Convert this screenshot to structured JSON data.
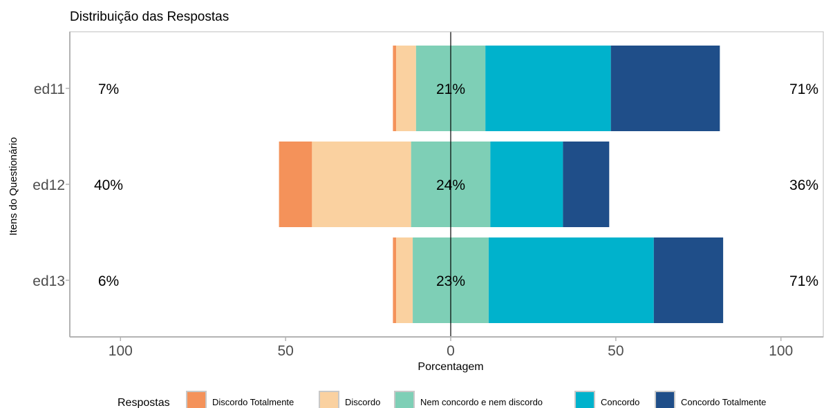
{
  "chart_data": {
    "type": "bar",
    "orientation": "horizontal-diverging",
    "title": "Distribuição das Respostas",
    "xlabel": "Porcentagem",
    "ylabel": "Itens do Questionário",
    "xlim": [
      -115,
      110
    ],
    "xticks": [
      -100,
      -50,
      0,
      50,
      100
    ],
    "xtick_labels": [
      "100",
      "50",
      "0",
      "50",
      "100"
    ],
    "grid": false,
    "categories": [
      "ed11",
      "ed12",
      "ed13"
    ],
    "series": [
      {
        "name": "Discordo Totalmente",
        "color": "#F4925A",
        "values": [
          1,
          10,
          1
        ]
      },
      {
        "name": "Discordo",
        "color": "#FAD1A0",
        "values": [
          6,
          30,
          5
        ]
      },
      {
        "name": "Nem concordo e nem discordo",
        "color": "#7ECFB6",
        "values": [
          21,
          24,
          23
        ]
      },
      {
        "name": "Concordo",
        "color": "#00B2CC",
        "values": [
          38,
          22,
          50
        ]
      },
      {
        "name": "Concordo Totalmente",
        "color": "#1F4E89",
        "values": [
          33,
          14,
          21
        ]
      }
    ],
    "left_labels": [
      "7%",
      "40%",
      "6%"
    ],
    "center_labels": [
      "21%",
      "24%",
      "23%"
    ],
    "right_labels": [
      "71%",
      "36%",
      "71%"
    ],
    "legend": {
      "title": "Respostas",
      "position": "bottom"
    }
  }
}
